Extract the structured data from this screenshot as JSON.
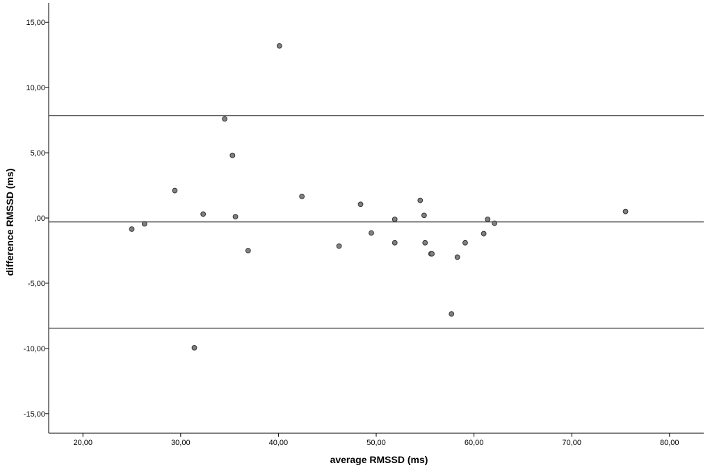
{
  "chart_data": {
    "type": "scatter",
    "xlabel": "average RMSSD (ms)",
    "ylabel": "difference RMSSD (ms)",
    "xlim": [
      16.5,
      83.5
    ],
    "ylim": [
      -16.5,
      16.5
    ],
    "x_ticks": [
      20,
      30,
      40,
      50,
      60,
      70,
      80
    ],
    "x_tick_labels": [
      "20,00",
      "30,00",
      "40,00",
      "50,00",
      "60,00",
      "70,00",
      "80,00"
    ],
    "y_ticks": [
      15,
      10,
      5,
      0,
      -5,
      -10,
      -15
    ],
    "y_tick_labels": [
      "15,00",
      "10,00",
      "5,00",
      ",00",
      "-5,00",
      "-10,00",
      "-15,00"
    ],
    "grid": false,
    "reference_lines": {
      "upper_limit": 7.85,
      "mean_difference": -0.3,
      "lower_limit": -8.45
    },
    "colors": {
      "marker_fill": "#808080",
      "marker_stroke": "#333333",
      "line": "#555555"
    },
    "points": [
      {
        "x": 25.0,
        "y": -0.85
      },
      {
        "x": 26.3,
        "y": -0.45
      },
      {
        "x": 29.4,
        "y": 2.1
      },
      {
        "x": 31.4,
        "y": -9.95
      },
      {
        "x": 32.3,
        "y": 0.3
      },
      {
        "x": 34.5,
        "y": 7.6
      },
      {
        "x": 35.3,
        "y": 4.8
      },
      {
        "x": 35.6,
        "y": 0.1
      },
      {
        "x": 36.9,
        "y": -2.5
      },
      {
        "x": 40.1,
        "y": 13.2
      },
      {
        "x": 42.4,
        "y": 1.65
      },
      {
        "x": 46.2,
        "y": -2.15
      },
      {
        "x": 48.4,
        "y": 1.05
      },
      {
        "x": 49.5,
        "y": -1.15
      },
      {
        "x": 51.9,
        "y": -0.1
      },
      {
        "x": 51.9,
        "y": -1.9
      },
      {
        "x": 54.5,
        "y": 1.35
      },
      {
        "x": 54.9,
        "y": 0.2
      },
      {
        "x": 55.0,
        "y": -1.9
      },
      {
        "x": 55.6,
        "y": -2.75
      },
      {
        "x": 55.7,
        "y": -2.75
      },
      {
        "x": 57.7,
        "y": -7.35
      },
      {
        "x": 58.3,
        "y": -3.0
      },
      {
        "x": 59.1,
        "y": -1.9
      },
      {
        "x": 61.0,
        "y": -1.2
      },
      {
        "x": 61.4,
        "y": -0.1
      },
      {
        "x": 62.1,
        "y": -0.4
      },
      {
        "x": 75.5,
        "y": 0.5
      }
    ]
  }
}
